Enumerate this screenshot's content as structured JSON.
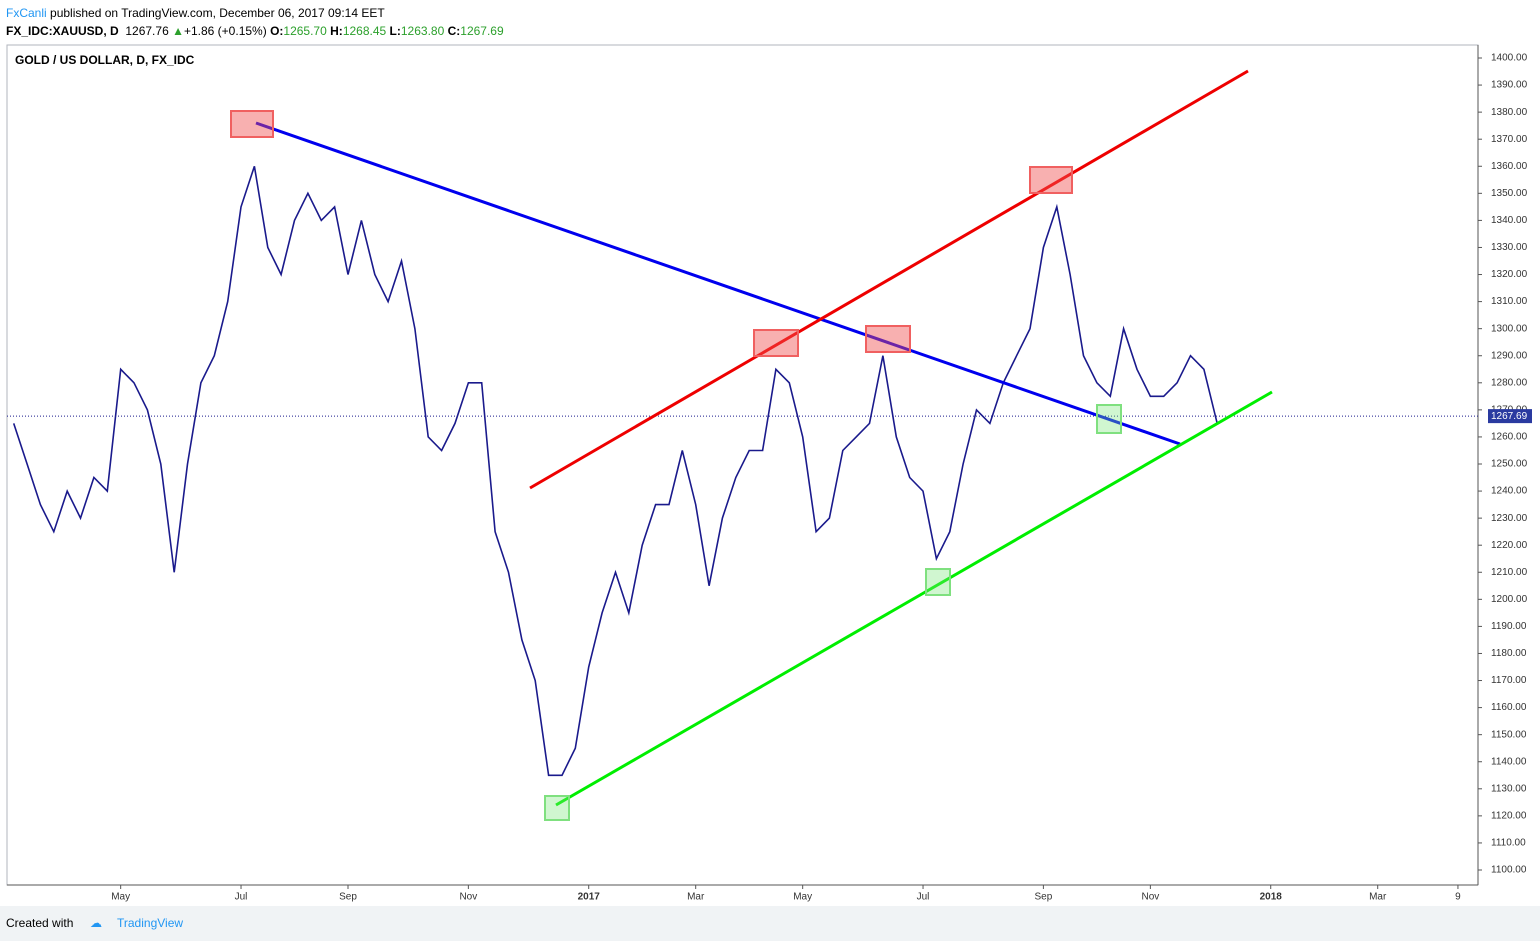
{
  "header": {
    "author": "FxCanli",
    "published": "published on TradingView.com, December 06, 2017 09:14 EET",
    "symbol": "FX_IDC:XAUUSD, D",
    "price": "1267.76",
    "change": "+1.86 (+0.15%)",
    "open_label": "O:",
    "open": "1265.70",
    "high_label": "H:",
    "high": "1268.45",
    "low_label": "L:",
    "low": "1263.80",
    "close_label": "C:",
    "close": "1267.69"
  },
  "footer": {
    "created": "Created with",
    "brand": "TradingView"
  },
  "chart_data": {
    "type": "line",
    "title": "GOLD / US DOLLAR, D, FX_IDC",
    "color": "#1a1a8c",
    "categories": [
      null,
      null,
      null,
      null,
      null,
      null,
      null,
      null,
      "May",
      null,
      null,
      null,
      null,
      null,
      null,
      null,
      null,
      "Jul",
      null,
      null,
      null,
      null,
      null,
      null,
      null,
      "Sep",
      null,
      null,
      null,
      null,
      null,
      null,
      null,
      null,
      "Nov",
      null,
      null,
      null,
      null,
      null,
      null,
      null,
      null,
      "2017",
      null,
      null,
      null,
      null,
      null,
      null,
      null,
      "Mar",
      null,
      null,
      null,
      null,
      null,
      null,
      null,
      "May",
      null,
      null,
      null,
      null,
      null,
      null,
      null,
      null,
      "Jul",
      null,
      null,
      null,
      null,
      null,
      null,
      null,
      null,
      "Sep",
      null,
      null,
      null,
      null,
      null,
      null,
      null,
      "Nov",
      null,
      null,
      null,
      null,
      null,
      null,
      null,
      null,
      "2018",
      null,
      null,
      null,
      null,
      null,
      null,
      null,
      "Mar",
      null,
      null,
      null,
      null,
      null,
      "9",
      null
    ],
    "values": [
      1265,
      1250,
      1235,
      1225,
      1240,
      1230,
      1245,
      1240,
      1285,
      1280,
      1270,
      1250,
      1210,
      1250,
      1280,
      1290,
      1310,
      1345,
      1360,
      1330,
      1320,
      1340,
      1350,
      1340,
      1345,
      1320,
      1340,
      1320,
      1310,
      1325,
      1300,
      1260,
      1255,
      1265,
      1280,
      1280,
      1225,
      1210,
      1185,
      1170,
      1135,
      1135,
      1145,
      1175,
      1195,
      1210,
      1195,
      1220,
      1235,
      1235,
      1255,
      1235,
      1205,
      1230,
      1245,
      1255,
      1255,
      1285,
      1280,
      1260,
      1225,
      1230,
      1255,
      1260,
      1265,
      1290,
      1260,
      1245,
      1240,
      1215,
      1225,
      1250,
      1270,
      1265,
      1280,
      1290,
      1300,
      1330,
      1345,
      1320,
      1290,
      1280,
      1275,
      1300,
      1285,
      1275,
      1275,
      1280,
      1290,
      1285,
      1265,
      null,
      null,
      null,
      null,
      null,
      null,
      null,
      null,
      null,
      null,
      null,
      null,
      null,
      null,
      null,
      null,
      null,
      null,
      null
    ],
    "last_price": 1267.69,
    "ylim": [
      1100,
      1400
    ],
    "yticks": [
      {
        "value": 1100,
        "label": "1100.00"
      },
      {
        "value": 1110,
        "label": "1110.00"
      },
      {
        "value": 1120,
        "label": "1120.00"
      },
      {
        "value": 1130,
        "label": "1130.00"
      },
      {
        "value": 1140,
        "label": "1140.00"
      },
      {
        "value": 1150,
        "label": "1150.00"
      },
      {
        "value": 1160,
        "label": "1160.00"
      },
      {
        "value": 1170,
        "label": "1170.00"
      },
      {
        "value": 1180,
        "label": "1180.00"
      },
      {
        "value": 1190,
        "label": "1190.00"
      },
      {
        "value": 1200,
        "label": "1200.00"
      },
      {
        "value": 1210,
        "label": "1210.00"
      },
      {
        "value": 1220,
        "label": "1220.00"
      },
      {
        "value": 1230,
        "label": "1230.00"
      },
      {
        "value": 1240,
        "label": "1240.00"
      },
      {
        "value": 1250,
        "label": "1250.00"
      },
      {
        "value": 1260,
        "label": "1260.00"
      },
      {
        "value": 1270,
        "label": "1270.00"
      },
      {
        "value": 1280,
        "label": "1280.00"
      },
      {
        "value": 1290,
        "label": "1290.00"
      },
      {
        "value": 1300,
        "label": "1300.00"
      },
      {
        "value": 1310,
        "label": "1310.00"
      },
      {
        "value": 1320,
        "label": "1320.00"
      },
      {
        "value": 1330,
        "label": "1330.00"
      },
      {
        "value": 1340,
        "label": "1340.00"
      },
      {
        "value": 1350,
        "label": "1350.00"
      },
      {
        "value": 1360,
        "label": "1360.00"
      },
      {
        "value": 1370,
        "label": "1370.00"
      },
      {
        "value": 1380,
        "label": "1380.00"
      },
      {
        "value": 1390,
        "label": "1390.00"
      },
      {
        "value": 1400,
        "label": "1400.00"
      }
    ]
  }
}
